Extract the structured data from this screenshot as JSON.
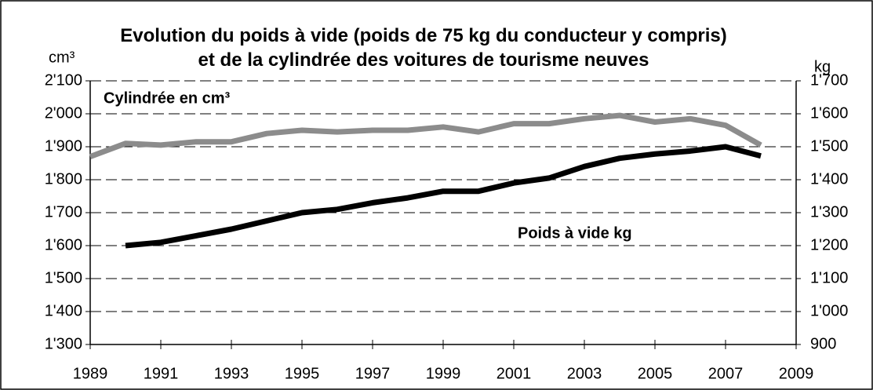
{
  "chart_data": {
    "type": "line",
    "title": "Evolution du poids à vide (poids de 75 kg du conducteur y compris) et de la cylindrée des voitures de tourisme neuves",
    "y_label": "cm³",
    "y2_label": "kg",
    "annotations": [
      "Cylindrée en cm³",
      "Poids à vide kg"
    ],
    "x": [
      1989,
      1990,
      1991,
      1992,
      1993,
      1994,
      1995,
      1996,
      1997,
      1998,
      1999,
      2000,
      2001,
      2002,
      2003,
      2004,
      2005,
      2006,
      2007,
      2008
    ],
    "series": [
      {
        "name": "Cylindrée en cm³",
        "color": "#8c8c8c",
        "axis": "y",
        "values": [
          1870,
          1910,
          1905,
          1915,
          1915,
          1940,
          1950,
          1945,
          1950,
          1950,
          1960,
          1945,
          1970,
          1970,
          1985,
          1995,
          1975,
          1985,
          1965,
          1905
        ]
      },
      {
        "name": "Poids à vide kg",
        "color": "#000000",
        "axis": "y2",
        "values": [
          null,
          1200,
          1210,
          1230,
          1250,
          1275,
          1300,
          1310,
          1330,
          1345,
          1365,
          1365,
          1390,
          1405,
          1440,
          1465,
          1478,
          1487,
          1500,
          1472
        ]
      }
    ],
    "xlim": [
      1989,
      2009
    ],
    "xticks": [
      1989,
      1991,
      1993,
      1995,
      1997,
      1999,
      2001,
      2003,
      2005,
      2007,
      2009
    ],
    "ylim": [
      1300,
      2100
    ],
    "yticks": [
      {
        "value": 1300,
        "label": "1'300"
      },
      {
        "value": 1400,
        "label": "1'400"
      },
      {
        "value": 1500,
        "label": "1'500"
      },
      {
        "value": 1600,
        "label": "1'600"
      },
      {
        "value": 1700,
        "label": "1'700"
      },
      {
        "value": 1800,
        "label": "1'800"
      },
      {
        "value": 1900,
        "label": "1'900"
      },
      {
        "value": 2000,
        "label": "2'000"
      },
      {
        "value": 2100,
        "label": "2'100"
      }
    ],
    "y2lim": [
      900,
      1700
    ],
    "y2ticks": [
      900,
      {
        "value": 1000,
        "label": "1'000"
      },
      {
        "value": 1100,
        "label": "1'100"
      },
      {
        "value": 1200,
        "label": "1'200"
      },
      {
        "value": 1300,
        "label": "1'300"
      },
      {
        "value": 1400,
        "label": "1'400"
      },
      {
        "value": 1500,
        "label": "1'500"
      },
      {
        "value": 1600,
        "label": "1'600"
      },
      {
        "value": 1700,
        "label": "1'700"
      }
    ],
    "grid": true
  }
}
